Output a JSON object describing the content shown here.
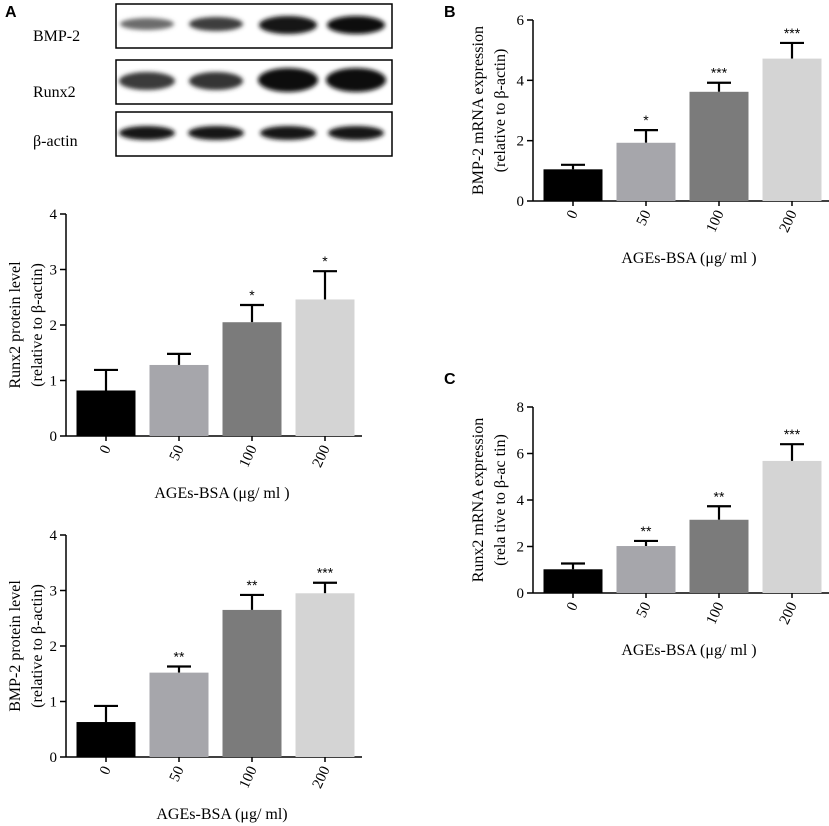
{
  "panel_letters": {
    "a": "A",
    "b": "B",
    "c": "C"
  },
  "blot": {
    "labels": [
      "BMP-2",
      "Runx2",
      "β-actin"
    ]
  },
  "chart_data": [
    {
      "id": "runx2_protein",
      "type": "bar",
      "categories": [
        "0",
        "50",
        "100",
        "200"
      ],
      "values": [
        0.82,
        1.28,
        2.05,
        2.46
      ],
      "errors": [
        0.37,
        0.2,
        0.31,
        0.51
      ],
      "significance": [
        "",
        "",
        "*",
        "*"
      ],
      "colors": [
        "#000000",
        "#a6a6ab",
        "#7b7b7b",
        "#d4d4d4"
      ],
      "xlabel": "AGEs-BSA (μg/ ml )",
      "ylabel_line1": "Runx2  protein level",
      "ylabel_line2": "(relative to β-actin)",
      "ylim": [
        0,
        4
      ],
      "yticks": [
        "0",
        "1",
        "2",
        "3",
        "4"
      ]
    },
    {
      "id": "bmp2_protein",
      "type": "bar",
      "categories": [
        "0",
        "50",
        "100",
        "200"
      ],
      "values": [
        0.63,
        1.52,
        2.65,
        2.95
      ],
      "errors": [
        0.29,
        0.11,
        0.27,
        0.19
      ],
      "significance": [
        "",
        "**",
        "**",
        "***"
      ],
      "colors": [
        "#000000",
        "#a6a6ab",
        "#7b7b7b",
        "#d4d4d4"
      ],
      "xlabel": "AGEs-BSA (μg/ ml)",
      "ylabel_line1": "BMP-2 protein level",
      "ylabel_line2": "(relative to β-actin)",
      "ylim": [
        0,
        4
      ],
      "yticks": [
        "0",
        "1",
        "2",
        "3",
        "4"
      ]
    },
    {
      "id": "bmp2_mrna",
      "type": "bar",
      "categories": [
        "0",
        "50",
        "100",
        "200"
      ],
      "values": [
        1.05,
        1.93,
        3.62,
        4.72
      ],
      "errors": [
        0.15,
        0.42,
        0.3,
        0.52
      ],
      "significance": [
        "",
        "*",
        "***",
        "***"
      ],
      "colors": [
        "#000000",
        "#a6a6ab",
        "#7b7b7b",
        "#d4d4d4"
      ],
      "xlabel": "AGEs-BSA (μg/ ml )",
      "ylabel_line1": "BMP-2 mRNA expression",
      "ylabel_line2": "(relative to β-actin)",
      "ylim": [
        0,
        6
      ],
      "yticks": [
        "0",
        "2",
        "4",
        "6"
      ]
    },
    {
      "id": "runx2_mrna",
      "type": "bar",
      "categories": [
        "0",
        "50",
        "100",
        "200"
      ],
      "values": [
        1.02,
        2.02,
        3.15,
        5.68
      ],
      "errors": [
        0.25,
        0.22,
        0.58,
        0.72
      ],
      "significance": [
        "",
        "**",
        "**",
        "***"
      ],
      "colors": [
        "#000000",
        "#a6a6ab",
        "#7b7b7b",
        "#d4d4d4"
      ],
      "xlabel": "AGEs-BSA (μg/ ml )",
      "ylabel_line1": "Runx2 mRNA expression",
      "ylabel_line2": "(rela tive to β-ac tin)",
      "ylim": [
        0,
        8
      ],
      "yticks": [
        "0",
        "2",
        "4",
        "6",
        "8"
      ]
    }
  ]
}
